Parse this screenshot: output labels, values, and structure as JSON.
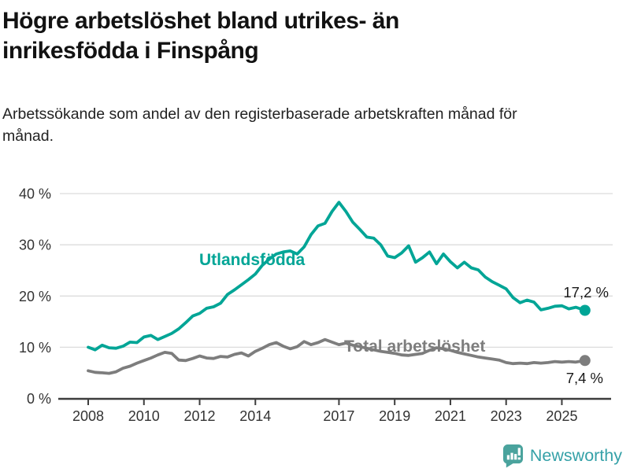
{
  "header": {
    "title": "Högre arbetslöshet bland utrikes- än inrikesfödda i Finspång",
    "subtitle": "Arbetssökande som andel av den registerbaserade arbetskraften månad för månad."
  },
  "footer": {
    "brand": "Newsworthy",
    "brand_teal": "#3aa1a8",
    "icon_teal": "#4aa39d"
  },
  "chart_data": {
    "type": "line",
    "title": "Högre arbetslöshet bland utrikes- än inrikesfödda i Finspång",
    "subtitle": "Arbetssökande som andel av den registerbaserade arbetskraften månad för månad.",
    "x_unit": "year (monthly data shown, approximated quarterly)",
    "grid": "horizontal",
    "legend": "inline-labels",
    "xlim": [
      2008,
      2026
    ],
    "ylim": [
      0,
      42
    ],
    "y_ticks": [
      {
        "value": 40,
        "label": "40 %"
      },
      {
        "value": 30,
        "label": "30 %"
      },
      {
        "value": 20,
        "label": "20 %"
      },
      {
        "value": 10,
        "label": "10 %"
      },
      {
        "value": 0,
        "label": "0 %"
      }
    ],
    "x_ticks": [
      {
        "value": 2008,
        "label": "2008"
      },
      {
        "value": 2010,
        "label": "2010"
      },
      {
        "value": 2012,
        "label": "2012"
      },
      {
        "value": 2014,
        "label": "2014"
      },
      {
        "value": 2017,
        "label": "2017"
      },
      {
        "value": 2019,
        "label": "2019"
      },
      {
        "value": 2021,
        "label": "2021"
      },
      {
        "value": 2023,
        "label": "2023"
      },
      {
        "value": 2025,
        "label": "2025"
      }
    ],
    "x": [
      2008.0,
      2008.25,
      2008.5,
      2008.75,
      2009.0,
      2009.25,
      2009.5,
      2009.75,
      2010.0,
      2010.25,
      2010.5,
      2010.75,
      2011.0,
      2011.25,
      2011.5,
      2011.75,
      2012.0,
      2012.25,
      2012.5,
      2012.75,
      2013.0,
      2013.25,
      2013.5,
      2013.75,
      2014.0,
      2014.25,
      2014.5,
      2014.75,
      2015.0,
      2015.25,
      2015.5,
      2015.75,
      2016.0,
      2016.25,
      2016.5,
      2016.75,
      2017.0,
      2017.25,
      2017.5,
      2017.75,
      2018.0,
      2018.25,
      2018.5,
      2018.75,
      2019.0,
      2019.25,
      2019.5,
      2019.75,
      2020.0,
      2020.25,
      2020.5,
      2020.75,
      2021.0,
      2021.25,
      2021.5,
      2021.75,
      2022.0,
      2022.25,
      2022.5,
      2022.75,
      2023.0,
      2023.25,
      2023.5,
      2023.75,
      2024.0,
      2024.25,
      2024.5,
      2024.75,
      2025.0,
      2025.25,
      2025.5,
      2025.83
    ],
    "series": [
      {
        "name": "Utlandsfödda",
        "color": "#00a596",
        "end_label": "17,2 %",
        "final_value": 17.2,
        "values": [
          10.0,
          9.5,
          10.4,
          9.9,
          9.8,
          10.2,
          11.0,
          10.9,
          12.0,
          12.3,
          11.5,
          12.1,
          12.7,
          13.6,
          14.8,
          16.1,
          16.6,
          17.6,
          17.9,
          18.6,
          20.3,
          21.2,
          22.2,
          23.2,
          24.3,
          26.0,
          27.2,
          28.2,
          28.6,
          28.8,
          28.2,
          29.6,
          32.0,
          33.7,
          34.2,
          36.5,
          38.3,
          36.5,
          34.4,
          33.0,
          31.5,
          31.3,
          30.0,
          27.8,
          27.5,
          28.4,
          29.8,
          26.6,
          27.5,
          28.6,
          26.3,
          28.2,
          26.7,
          25.5,
          26.6,
          25.5,
          25.1,
          23.7,
          22.8,
          22.1,
          21.4,
          19.7,
          18.7,
          19.2,
          18.8,
          17.3,
          17.6,
          18.0,
          18.1,
          17.5,
          17.8,
          17.2
        ]
      },
      {
        "name": "Total arbetslöshet",
        "color": "#7d7d7d",
        "end_label": "7,4 %",
        "final_value": 7.4,
        "values": [
          5.4,
          5.1,
          5.0,
          4.9,
          5.2,
          5.9,
          6.3,
          6.9,
          7.4,
          7.9,
          8.5,
          9.0,
          8.8,
          7.5,
          7.4,
          7.8,
          8.3,
          7.9,
          7.8,
          8.2,
          8.1,
          8.6,
          8.9,
          8.3,
          9.2,
          9.8,
          10.5,
          10.9,
          10.2,
          9.7,
          10.1,
          11.1,
          10.5,
          10.9,
          11.5,
          11.0,
          10.5,
          10.8,
          10.4,
          10.1,
          9.8,
          9.5,
          9.2,
          9.0,
          8.8,
          8.5,
          8.4,
          8.6,
          8.8,
          9.4,
          9.9,
          9.7,
          9.4,
          9.0,
          8.7,
          8.4,
          8.1,
          7.9,
          7.7,
          7.5,
          7.0,
          6.8,
          6.9,
          6.8,
          7.0,
          6.9,
          7.0,
          7.2,
          7.1,
          7.2,
          7.1,
          7.4
        ]
      }
    ]
  }
}
